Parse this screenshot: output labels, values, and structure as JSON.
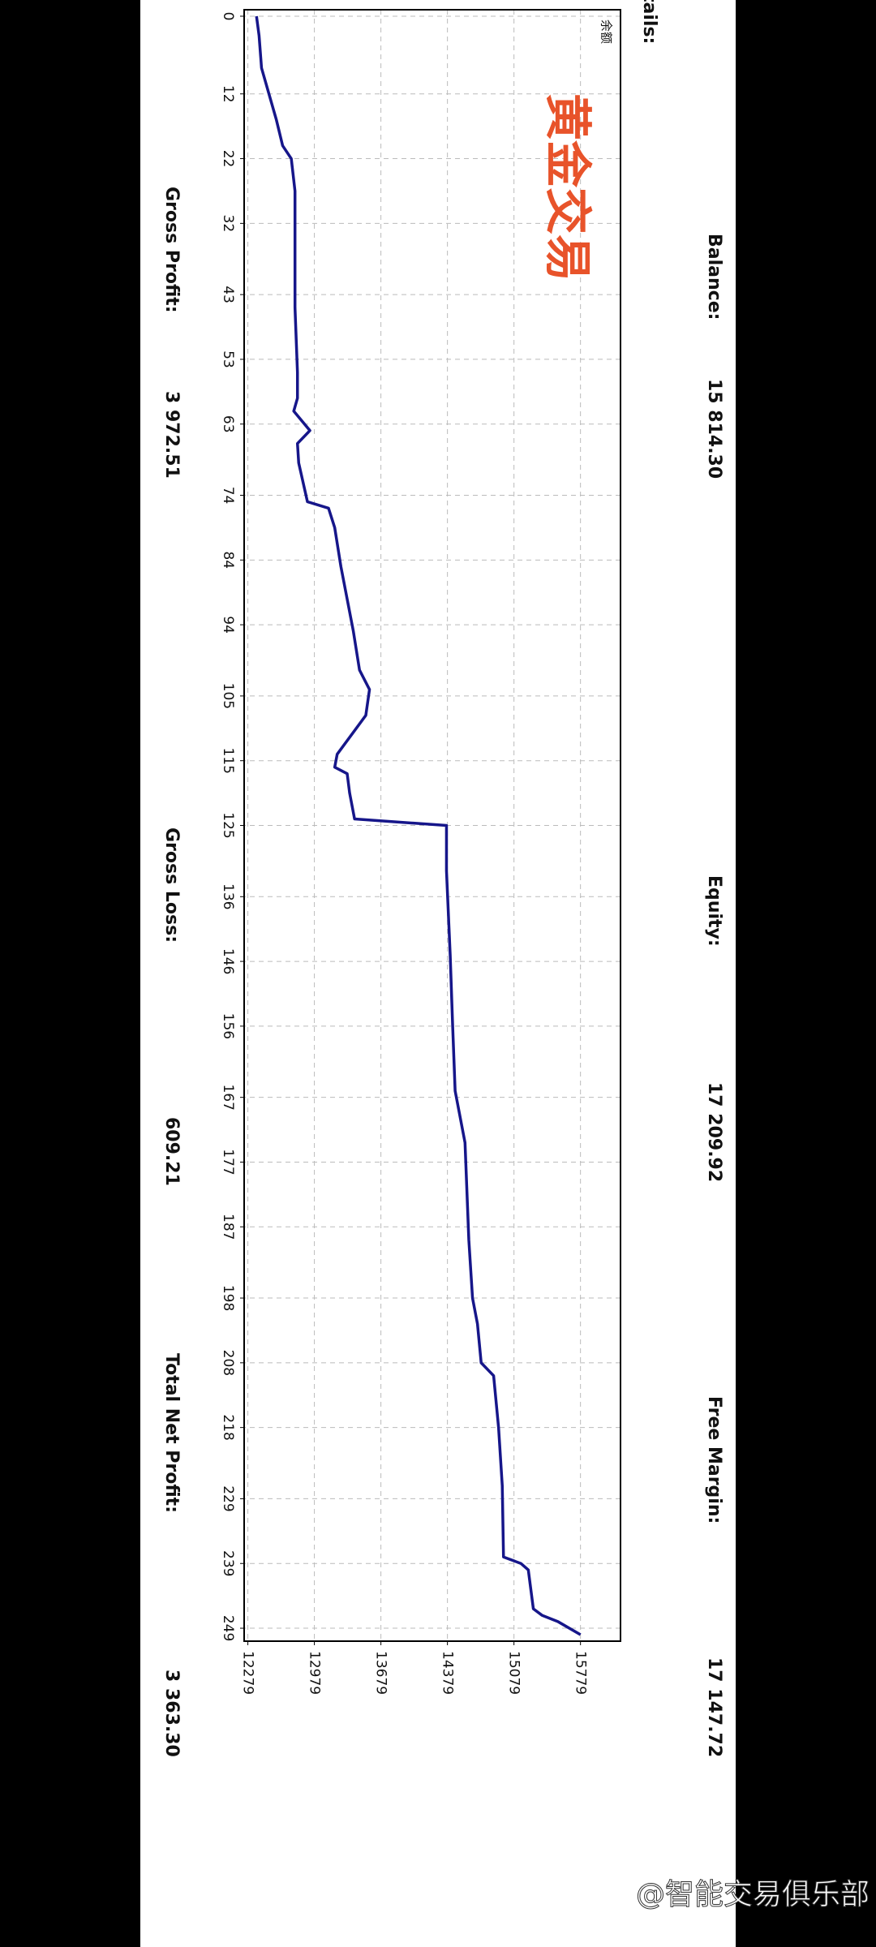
{
  "header": {
    "label": "tails:"
  },
  "account": {
    "balance_label": "Balance:",
    "balance": "15 814.30",
    "equity_label": "Equity:",
    "equity": "17 209.92",
    "free_margin_label": "Free Margin:",
    "free_margin": "17 147.72",
    "gross_profit_label": "Gross Profit:",
    "gross_profit": "3 972.51",
    "gross_loss_label": "Gross Loss:",
    "gross_loss": "609.21",
    "net_profit_label": "Total Net Profit:",
    "net_profit": "3 363.30"
  },
  "overlay_text": "黄金交易",
  "watermark": "@智能交易俱乐部",
  "chart_data": {
    "type": "line",
    "title": "余额",
    "x": [
      0,
      3,
      8,
      12,
      16,
      20,
      22,
      27,
      45,
      55,
      59,
      61,
      64,
      66,
      69,
      75,
      76,
      79,
      85,
      95,
      101,
      104,
      108,
      114,
      116,
      117,
      120,
      124,
      125,
      132,
      145,
      156,
      166,
      174,
      189,
      198,
      202,
      208,
      210,
      218,
      227,
      238,
      239,
      240,
      246,
      247,
      248,
      250
    ],
    "series": [
      {
        "name": "余额",
        "color": "#16168a",
        "values": [
          12370,
          12397,
          12423,
          12501,
          12579,
          12645,
          12736,
          12775,
          12775,
          12801,
          12801,
          12762,
          12932,
          12801,
          12814,
          12906,
          13128,
          13193,
          13258,
          13389,
          13454,
          13559,
          13520,
          13219,
          13193,
          13324,
          13350,
          13402,
          14369,
          14369,
          14408,
          14434,
          14460,
          14564,
          14604,
          14643,
          14695,
          14734,
          14865,
          14917,
          14956,
          14969,
          15152,
          15230,
          15283,
          15374,
          15544,
          15779
        ]
      }
    ],
    "xlim": [
      -1,
      251
    ],
    "xticks": [
      0,
      12,
      22,
      32,
      43,
      53,
      63,
      74,
      84,
      94,
      105,
      115,
      125,
      136,
      146,
      156,
      167,
      177,
      187,
      198,
      208,
      218,
      229,
      239,
      249
    ],
    "ylim": [
      12240,
      16200
    ],
    "yticks": [
      12279,
      12979,
      13679,
      14379,
      15079,
      15779
    ],
    "grid": true
  }
}
